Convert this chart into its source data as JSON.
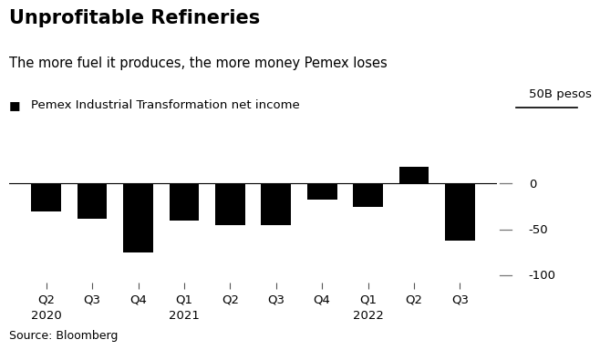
{
  "title": "Unprofitable Refineries",
  "subtitle": "The more fuel it produces, the more money Pemex loses",
  "legend_label": "Pemex Industrial Transformation net income",
  "unit_label": "50B pesos",
  "source": "Source: Bloomberg",
  "tick_labels_top": [
    "Q2",
    "Q3",
    "Q4",
    "Q1",
    "Q2",
    "Q3",
    "Q4",
    "Q1",
    "Q2",
    "Q3"
  ],
  "tick_labels_bottom": [
    "2020",
    "",
    "",
    "2021",
    "",
    "",
    "",
    "2022",
    "",
    ""
  ],
  "values": [
    -30,
    -38,
    -75,
    -40,
    -45,
    -45,
    -17,
    -25,
    18,
    -62
  ],
  "bar_color": "#000000",
  "background_color": "#ffffff",
  "ylim": [
    -108,
    55
  ],
  "yticks": [
    0,
    -50,
    -100
  ],
  "ytick_labels": [
    "0",
    "-50",
    "-100"
  ],
  "title_fontsize": 15,
  "subtitle_fontsize": 10.5,
  "legend_fontsize": 9.5,
  "tick_fontsize": 9.5,
  "source_fontsize": 9
}
